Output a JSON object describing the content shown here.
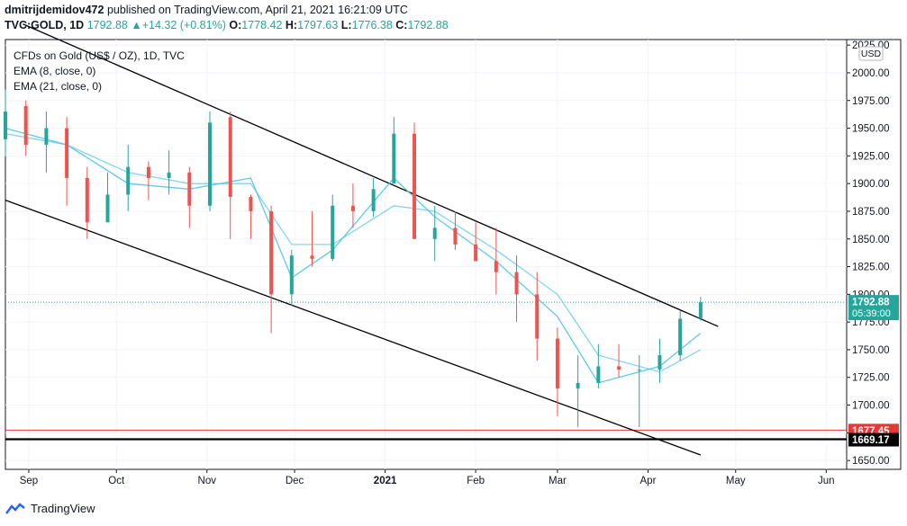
{
  "header": {
    "author": "dmitrijdemidov472",
    "published_text": "published on TradingView.com, April 21, 2021 16:21:09 UTC",
    "symbol_line": "TVC:GOLD, 1D",
    "last": "1792.88",
    "change": "+14.32 (+0.81%)",
    "open_label": "O:",
    "open": "1778.42",
    "high_label": "H:",
    "high": "1797.63",
    "low_label": "L:",
    "low": "1776.38",
    "close_label": "C:",
    "close": "1792.88"
  },
  "legend": {
    "title": "CFDs on Gold (US$ / OZ), 1D, TVC",
    "ema1": "EMA (8, close, 0)",
    "ema2": "EMA (21, close, 0)"
  },
  "footer": {
    "brand": "TradingView"
  },
  "colors": {
    "up": "#26a69a",
    "down": "#ef5350",
    "ema": "#4fc3e8",
    "support_red": "#e53935",
    "support_black": "#000000",
    "grid": "#f0f3fa"
  },
  "chart_data": {
    "type": "candlestick",
    "currency_label": "USD",
    "y_ticks": [
      1650,
      1675,
      1700,
      1725,
      1750,
      1775,
      1800,
      1825,
      1850,
      1875,
      1900,
      1925,
      1950,
      1975,
      2000,
      2025
    ],
    "ylim": [
      1642,
      2030
    ],
    "x_ticks": [
      "Sep",
      "Oct",
      "Nov",
      "Dec",
      "2021",
      "Feb",
      "Mar",
      "Apr",
      "May",
      "Jun"
    ],
    "x_start": "2020-08-24",
    "x_end": "2021-06-08",
    "price_labels": [
      {
        "value": "1792.88",
        "sub": "05:39:00",
        "price": 1792.88,
        "color": "#26a69a"
      },
      {
        "value": "1677.45",
        "price": 1677.45,
        "color": "#e53935"
      },
      {
        "value": "1669.17",
        "price": 1669.17,
        "color": "#000000"
      }
    ],
    "horizontal_lines": [
      {
        "price": 1677.45,
        "color": "#e53935",
        "style": "solid"
      },
      {
        "price": 1669.17,
        "color": "#000000",
        "style": "thick"
      },
      {
        "price": 1792.88,
        "color": "#26a69a",
        "style": "dotted"
      }
    ],
    "trendlines": [
      {
        "from": [
          "2020-08-30",
          2044
        ],
        "to": [
          "2021-04-25",
          1771
        ]
      },
      {
        "from": [
          "2020-08-24",
          1885
        ],
        "to": [
          "2021-04-19",
          1655
        ]
      }
    ],
    "series": [
      {
        "name": "price",
        "x": [
          "2020-08-24",
          "2020-08-31",
          "2020-09-07",
          "2020-09-14",
          "2020-09-21",
          "2020-09-28",
          "2020-10-05",
          "2020-10-12",
          "2020-10-19",
          "2020-10-26",
          "2020-11-02",
          "2020-11-09",
          "2020-11-16",
          "2020-11-23",
          "2020-11-30",
          "2020-12-07",
          "2020-12-14",
          "2020-12-21",
          "2020-12-28",
          "2021-01-04",
          "2021-01-11",
          "2021-01-18",
          "2021-01-25",
          "2021-02-01",
          "2021-02-08",
          "2021-02-15",
          "2021-02-22",
          "2021-03-01",
          "2021-03-08",
          "2021-03-15",
          "2021-03-22",
          "2021-03-29",
          "2021-04-05",
          "2021-04-12",
          "2021-04-19"
        ],
        "open": [
          1940,
          1970,
          1935,
          1950,
          1905,
          1865,
          1890,
          1915,
          1905,
          1910,
          1880,
          1960,
          1888,
          1875,
          1800,
          1835,
          1832,
          1880,
          1875,
          1900,
          1945,
          1850,
          1860,
          1845,
          1830,
          1820,
          1800,
          1760,
          1715,
          1720,
          1735,
          1732,
          1732,
          1745,
          1778.42
        ],
        "high": [
          1985,
          1975,
          1965,
          1960,
          1915,
          1910,
          1935,
          1920,
          1930,
          1915,
          1965,
          1965,
          1890,
          1880,
          1840,
          1875,
          1890,
          1900,
          1905,
          1960,
          1955,
          1880,
          1875,
          1865,
          1860,
          1835,
          1820,
          1770,
          1745,
          1755,
          1755,
          1745,
          1760,
          1785,
          1797.63
        ],
        "low": [
          1925,
          1925,
          1910,
          1880,
          1850,
          1865,
          1875,
          1885,
          1890,
          1860,
          1875,
          1850,
          1850,
          1765,
          1790,
          1825,
          1830,
          1860,
          1870,
          1900,
          1850,
          1830,
          1840,
          1830,
          1800,
          1775,
          1740,
          1690,
          1680,
          1715,
          1725,
          1680,
          1720,
          1740,
          1776.38
        ],
        "close": [
          1965,
          1935,
          1950,
          1905,
          1865,
          1890,
          1915,
          1905,
          1910,
          1880,
          1955,
          1888,
          1875,
          1800,
          1835,
          1832,
          1880,
          1875,
          1895,
          1945,
          1850,
          1860,
          1845,
          1830,
          1820,
          1800,
          1760,
          1715,
          1720,
          1735,
          1732,
          1732,
          1745,
          1778,
          1792.88
        ]
      }
    ],
    "ema": [
      {
        "name": "EMA (8, close, 0)",
        "x": [
          "2020-08-24",
          "2020-09-14",
          "2020-10-05",
          "2020-10-26",
          "2020-11-16",
          "2020-11-30",
          "2020-12-14",
          "2021-01-04",
          "2021-01-18",
          "2021-02-08",
          "2021-03-01",
          "2021-03-15",
          "2021-04-05",
          "2021-04-19"
        ],
        "values": [
          1950,
          1935,
          1900,
          1895,
          1905,
          1815,
          1840,
          1905,
          1870,
          1830,
          1780,
          1720,
          1735,
          1765
        ]
      },
      {
        "name": "EMA (21, close, 0)",
        "x": [
          "2020-08-24",
          "2020-09-14",
          "2020-10-05",
          "2020-10-26",
          "2020-11-16",
          "2020-11-30",
          "2020-12-14",
          "2021-01-04",
          "2021-01-18",
          "2021-02-08",
          "2021-03-01",
          "2021-03-15",
          "2021-04-05",
          "2021-04-19"
        ],
        "values": [
          1945,
          1935,
          1910,
          1900,
          1900,
          1845,
          1845,
          1880,
          1875,
          1840,
          1800,
          1745,
          1730,
          1750
        ]
      }
    ]
  }
}
